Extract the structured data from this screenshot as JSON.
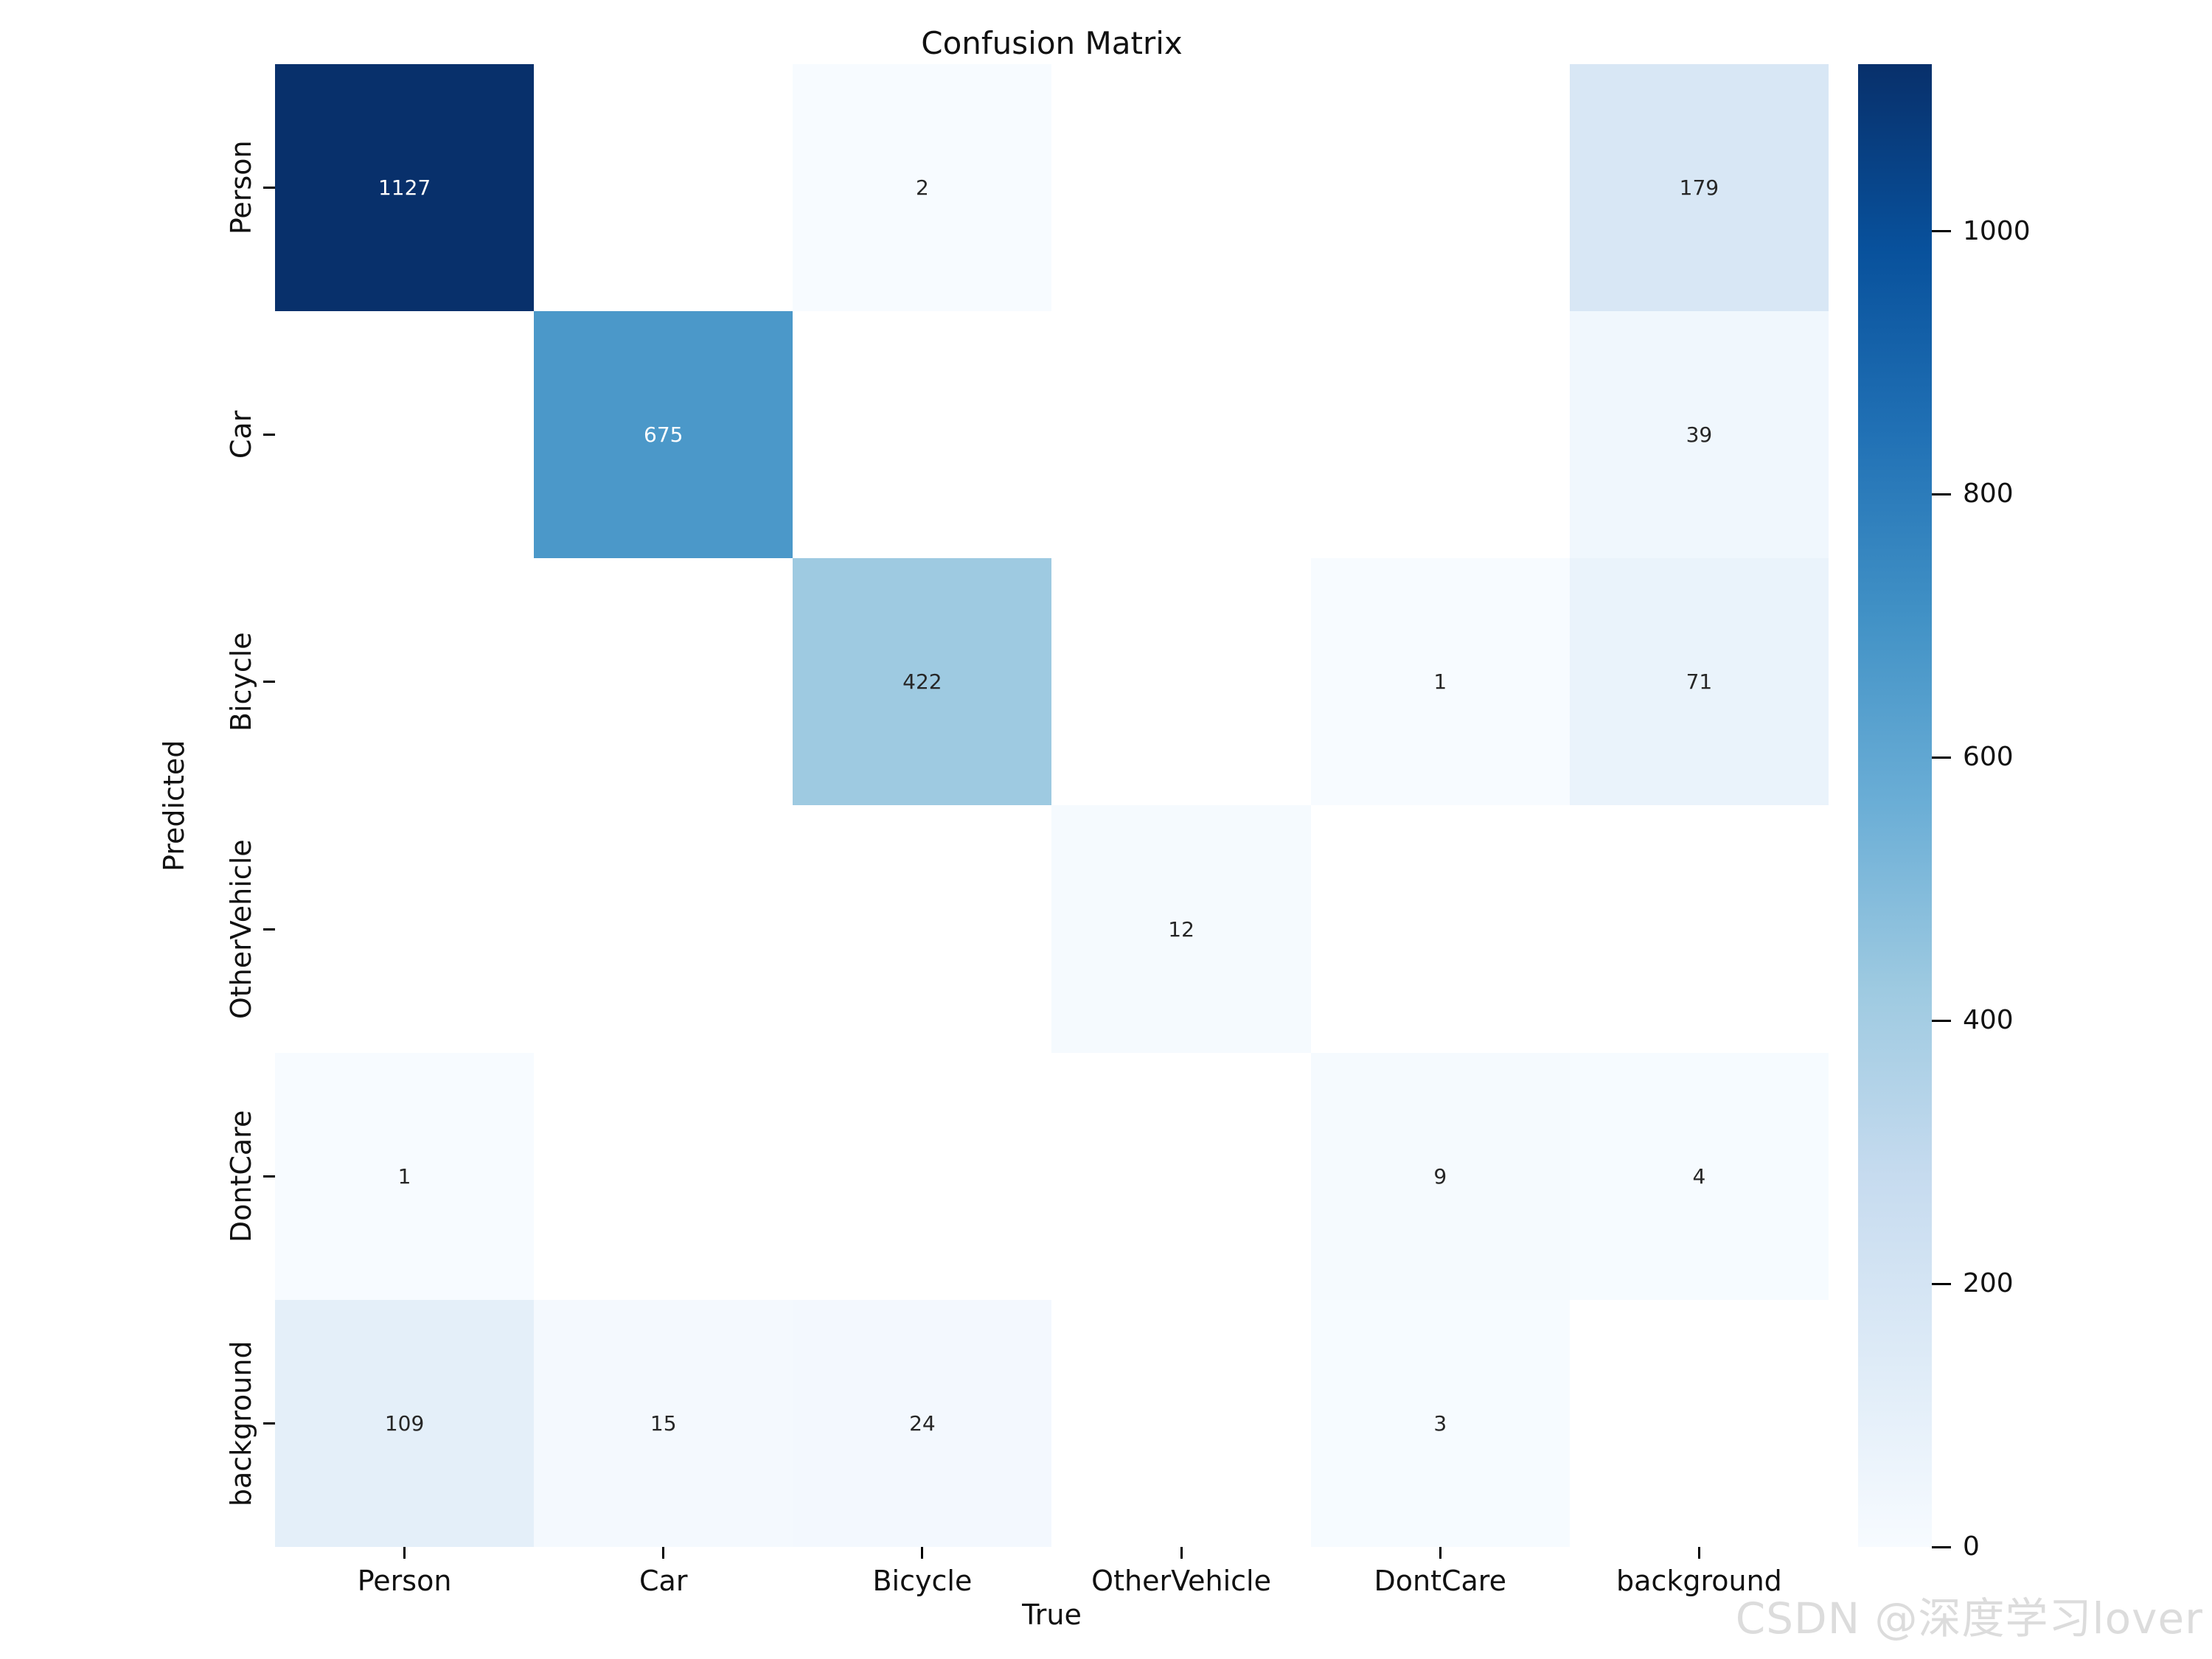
{
  "figure": {
    "title": "Confusion Matrix",
    "watermark": "CSDN @深度学习lover"
  },
  "chart_data": {
    "type": "heatmap",
    "title": "Confusion Matrix",
    "xlabel": "True",
    "ylabel": "Predicted",
    "x_categories": [
      "Person",
      "Car",
      "Bicycle",
      "OtherVehicle",
      "DontCare",
      "background"
    ],
    "y_categories": [
      "Person",
      "Car",
      "Bicycle",
      "OtherVehicle",
      "DontCare",
      "background"
    ],
    "matrix": [
      [
        1127,
        0,
        2,
        0,
        0,
        179
      ],
      [
        0,
        675,
        0,
        0,
        0,
        39
      ],
      [
        0,
        0,
        422,
        0,
        1,
        71
      ],
      [
        0,
        0,
        0,
        12,
        0,
        0
      ],
      [
        1,
        0,
        0,
        0,
        9,
        4
      ],
      [
        109,
        15,
        24,
        0,
        3,
        0
      ]
    ],
    "vmin": 0,
    "vmax": 1127,
    "colorbar_ticks": [
      0,
      200,
      400,
      600,
      800,
      1000
    ],
    "colorbar_position": "right",
    "grid": false,
    "colormap": {
      "name": "Blues",
      "stops": [
        {
          "pos": 0.0,
          "color": "#f7fbff"
        },
        {
          "pos": 0.125,
          "color": "#deebf7"
        },
        {
          "pos": 0.25,
          "color": "#c6dbef"
        },
        {
          "pos": 0.375,
          "color": "#9ecae1"
        },
        {
          "pos": 0.5,
          "color": "#6baed6"
        },
        {
          "pos": 0.625,
          "color": "#4292c6"
        },
        {
          "pos": 0.75,
          "color": "#2171b5"
        },
        {
          "pos": 0.875,
          "color": "#08519c"
        },
        {
          "pos": 1.0,
          "color": "#08306b"
        }
      ]
    },
    "zero_cell_color": "#ffffff",
    "annotation_text_dark": "#262626",
    "annotation_text_light": "#ffffff"
  }
}
